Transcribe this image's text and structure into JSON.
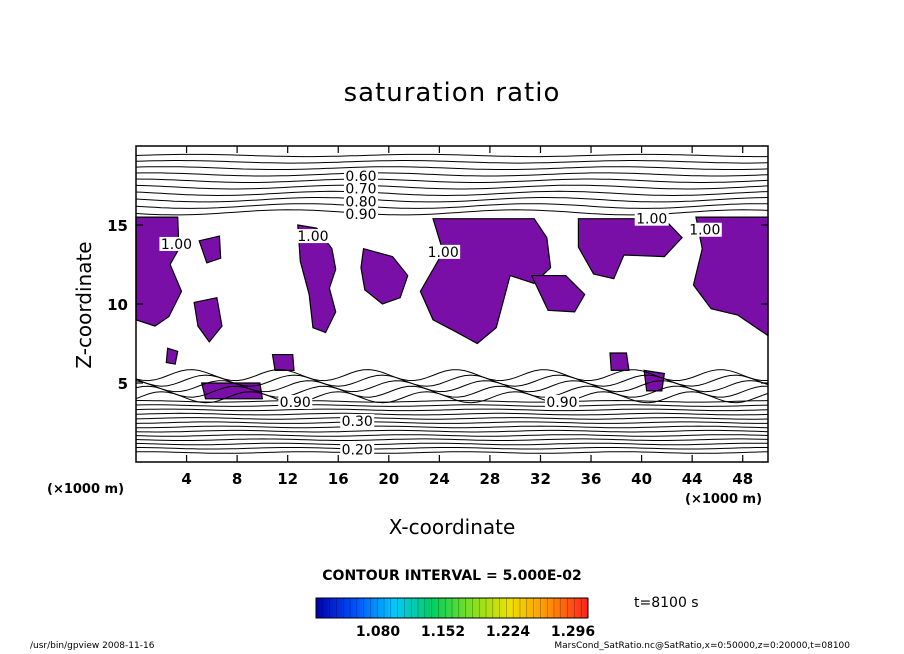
{
  "chart_data": {
    "type": "contour",
    "title": "saturation ratio",
    "xlabel": "X-coordinate",
    "ylabel": "Z-coordinate",
    "x_unit": "(×1000 m)",
    "y_unit": "(×1000 m)",
    "xlim": [
      0,
      50
    ],
    "ylim": [
      0,
      20
    ],
    "x_ticks": [
      4,
      8,
      12,
      16,
      20,
      24,
      28,
      32,
      36,
      40,
      44,
      48
    ],
    "y_ticks": [
      5,
      10,
      15
    ],
    "contour_labels": [
      {
        "text": "0.60",
        "x": 17.8,
        "y": 18.1
      },
      {
        "text": "0.70",
        "x": 17.8,
        "y": 17.3
      },
      {
        "text": "0.80",
        "x": 17.8,
        "y": 16.5
      },
      {
        "text": "0.90",
        "x": 17.8,
        "y": 15.7
      },
      {
        "text": "1.00",
        "x": 40.8,
        "y": 15.4
      },
      {
        "text": "1.00",
        "x": 45.0,
        "y": 14.7
      },
      {
        "text": "1.00",
        "x": 14.0,
        "y": 14.3
      },
      {
        "text": "1.00",
        "x": 24.3,
        "y": 13.3
      },
      {
        "text": "1.00",
        "x": 3.2,
        "y": 13.8
      },
      {
        "text": "0.90",
        "x": 12.6,
        "y": 3.8
      },
      {
        "text": "0.90",
        "x": 33.7,
        "y": 3.8
      },
      {
        "text": "0.30",
        "x": 17.5,
        "y": 2.6
      },
      {
        "text": "0.20",
        "x": 17.5,
        "y": 0.8
      }
    ],
    "contour_interval": "CONTOUR INTERVAL = 5.000E-02",
    "colorbar": {
      "tick_labels": [
        "1.080",
        "1.152",
        "1.224",
        "1.296"
      ],
      "colors": [
        "#0000b0",
        "#0050ff",
        "#00c8ff",
        "#00d060",
        "#80e020",
        "#f0e000",
        "#ff9000",
        "#ff2020"
      ]
    },
    "supersaturated_fill": "#7a0fa8",
    "time_label": "t=8100 s",
    "grid": false
  },
  "footer": {
    "left": "/usr/bin/gpview   2008-11-16",
    "right": "MarsCond_SatRatio.nc@SatRatio,x=0:50000,z=0:20000,t=08100"
  }
}
